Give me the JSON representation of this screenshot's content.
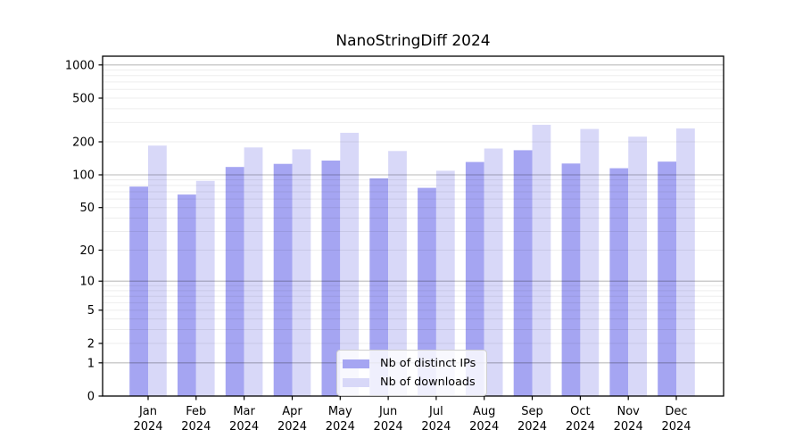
{
  "title": "NanoStringDiff 2024",
  "legend": {
    "items": [
      {
        "label": "Nb of distinct IPs",
        "color": "#a5a5f2"
      },
      {
        "label": "Nb of downloads",
        "color": "#d8d8f8"
      }
    ]
  },
  "chart_data": {
    "type": "bar",
    "title": "NanoStringDiff 2024",
    "categories": [
      "Jan",
      "Feb",
      "Mar",
      "Apr",
      "May",
      "Jun",
      "Jul",
      "Aug",
      "Sep",
      "Oct",
      "Nov",
      "Dec"
    ],
    "x_year_label": "2024",
    "series": [
      {
        "name": "Nb of distinct IPs",
        "color": "#a5a5f2",
        "values": [
          78,
          66,
          118,
          126,
          135,
          93,
          76,
          131,
          168,
          127,
          115,
          132
        ]
      },
      {
        "name": "Nb of downloads",
        "color": "#d8d8f8",
        "values": [
          185,
          88,
          178,
          171,
          242,
          165,
          109,
          174,
          286,
          262,
          223,
          265
        ]
      }
    ],
    "yscale": "log10(1+y)",
    "yticks": [
      0,
      1,
      2,
      5,
      10,
      20,
      50,
      100,
      200,
      500,
      1000
    ],
    "ylim": [
      0,
      1200
    ],
    "grid": "horizontal, minor 2-9 per decade light gray, major at powers of 10 darker",
    "legend_position": "bottom-center",
    "colors": {
      "axis": "#000000",
      "grid_minor": "rgba(0,0,0,0.07)",
      "grid_major": "rgba(0,0,0,0.27)",
      "tick_text": "#000000"
    }
  }
}
